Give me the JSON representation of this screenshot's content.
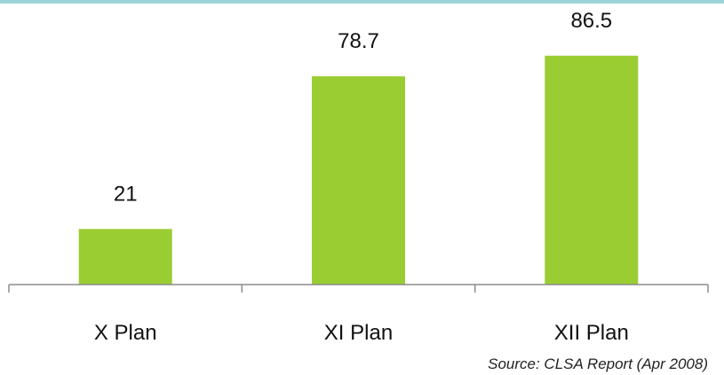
{
  "chart_data": {
    "type": "bar",
    "categories": [
      "X Plan",
      "XI Plan",
      "XII Plan"
    ],
    "values": [
      21,
      78.7,
      86.5
    ],
    "data_labels": [
      "21",
      "78.7",
      "86.5"
    ],
    "title": "",
    "xlabel": "",
    "ylabel": "",
    "ylim": [
      0,
      100
    ],
    "grid": false,
    "legend": "none",
    "bar_color": "#9acd32",
    "axis_color": "#8c8c8c"
  },
  "footer": {
    "source": "Source:  CLSA Report (Apr 2008)"
  },
  "colors": {
    "top_rule": "#9dd3d8",
    "text": "#111111"
  }
}
